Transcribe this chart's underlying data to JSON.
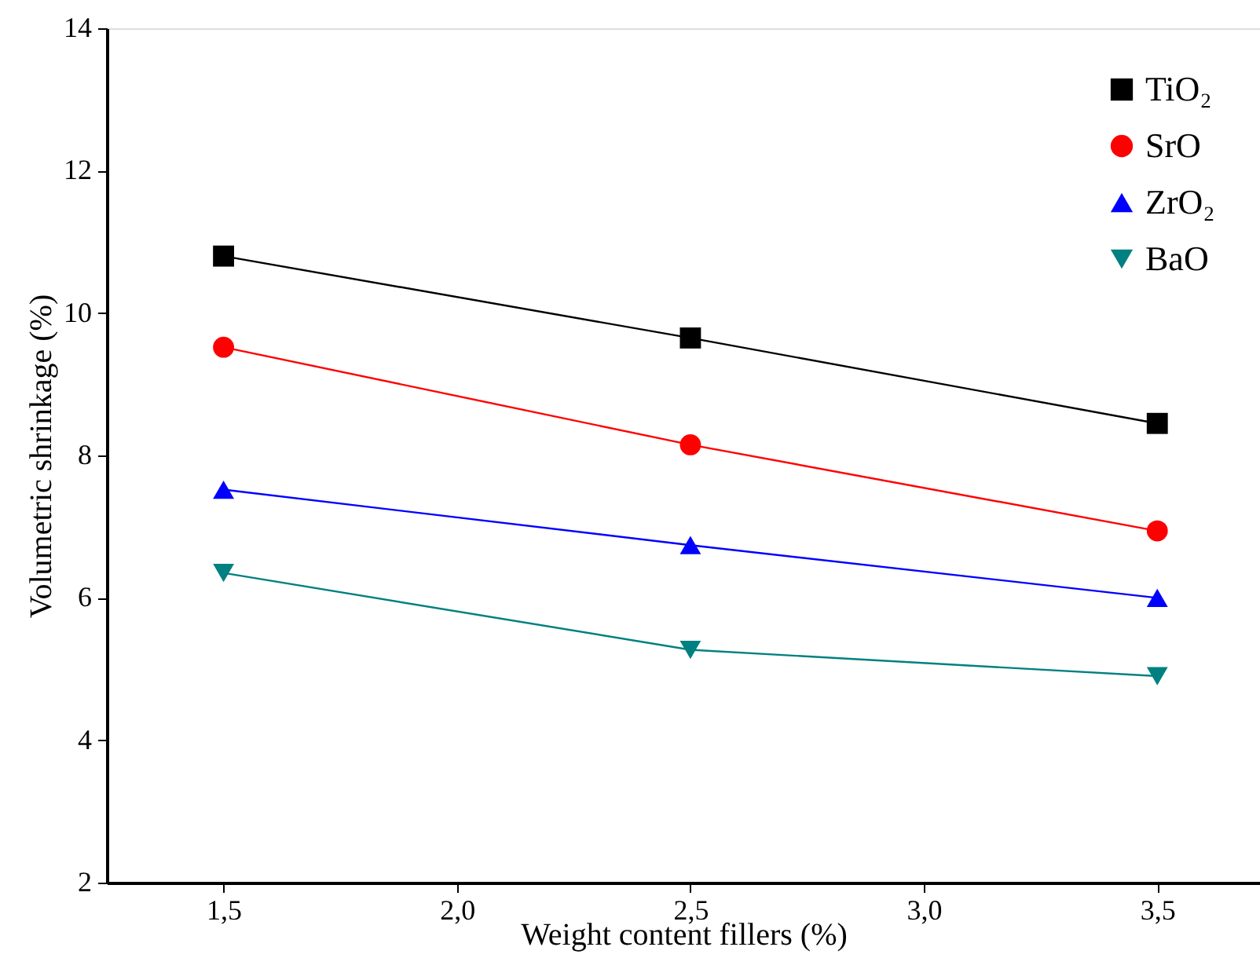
{
  "chart_data": {
    "type": "line",
    "xlabel": "Weight content fillers (%)",
    "ylabel": "Volumetric shrinkage (%)",
    "x": [
      1.5,
      2.5,
      3.5
    ],
    "series": [
      {
        "name": "TiO₂",
        "color": "#000000",
        "marker": "square",
        "values": [
          10.8,
          9.65,
          8.45
        ]
      },
      {
        "name": "SrO",
        "color": "#ff0000",
        "marker": "circle",
        "values": [
          9.52,
          8.15,
          6.94
        ]
      },
      {
        "name": "ZrO₂",
        "color": "#0000ff",
        "marker": "triangle",
        "values": [
          7.52,
          6.74,
          6.0
        ]
      },
      {
        "name": "BaO",
        "color": "#008080",
        "marker": "triangle-down",
        "values": [
          6.35,
          5.27,
          4.9
        ]
      }
    ],
    "xlim": [
      1.25,
      3.72
    ],
    "ylim": [
      2,
      14
    ],
    "xticks": [
      {
        "value": 1.5,
        "label": "1,5"
      },
      {
        "value": 2.0,
        "label": "2,0"
      },
      {
        "value": 2.5,
        "label": "2,5"
      },
      {
        "value": 3.0,
        "label": "3,0"
      },
      {
        "value": 3.5,
        "label": "3,5"
      }
    ],
    "yticks": [
      2,
      4,
      6,
      8,
      10,
      12,
      14
    ],
    "grid": false,
    "legend": "top right",
    "line_style": "solid"
  }
}
